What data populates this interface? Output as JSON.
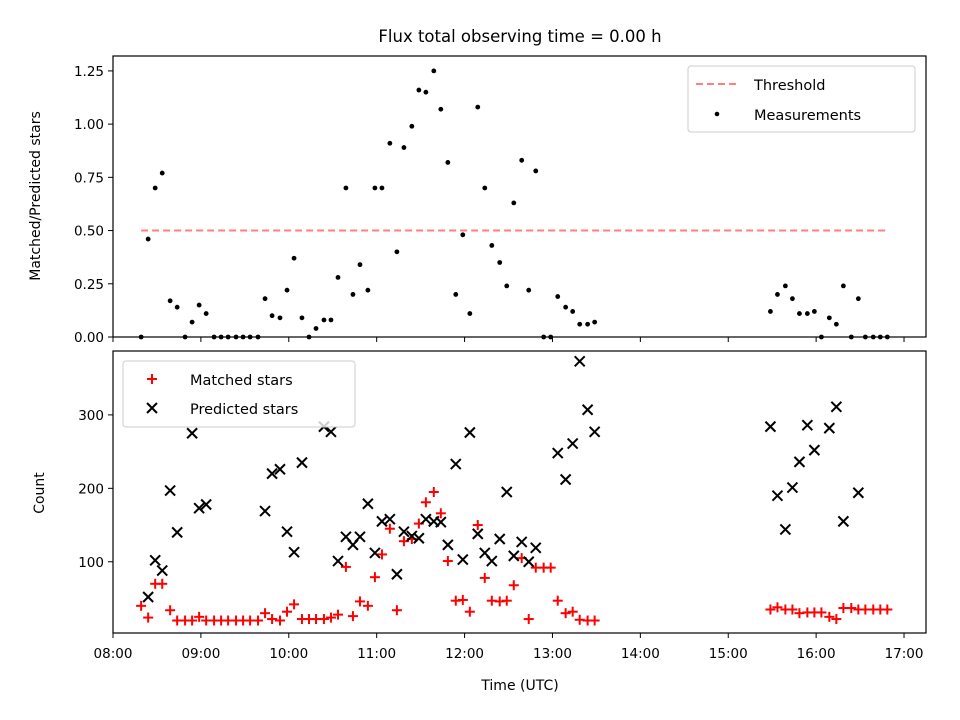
{
  "figure": {
    "title": "Flux total observing time = 0.00 h"
  },
  "chart_data": [
    {
      "type": "scatter",
      "ylabel": "Matched/Predicted stars",
      "ylim": [
        0,
        1.32
      ],
      "xlim": [
        8.0,
        17.25
      ],
      "yticks": [
        0.0,
        0.25,
        0.5,
        0.75,
        1.0,
        1.25
      ],
      "ytick_labels": [
        "0.00",
        "0.25",
        "0.50",
        "0.75",
        "1.00",
        "1.25"
      ],
      "legend_position": "upper right",
      "grid": false,
      "threshold": {
        "name": "Threshold",
        "value": 0.5,
        "x_range": [
          8.32,
          16.83
        ],
        "color": "#ff7f7f"
      },
      "series": [
        {
          "name": "Measurements",
          "marker": "dot",
          "color": "#000000",
          "points": [
            [
              8.32,
              0.0
            ],
            [
              8.4,
              0.46
            ],
            [
              8.48,
              0.7
            ],
            [
              8.56,
              0.77
            ],
            [
              8.65,
              0.17
            ],
            [
              8.73,
              0.14
            ],
            [
              8.82,
              0.0
            ],
            [
              8.9,
              0.07
            ],
            [
              8.98,
              0.15
            ],
            [
              9.06,
              0.11
            ],
            [
              9.15,
              0.0
            ],
            [
              9.23,
              0.0
            ],
            [
              9.31,
              0.0
            ],
            [
              9.4,
              0.0
            ],
            [
              9.48,
              0.0
            ],
            [
              9.56,
              0.0
            ],
            [
              9.65,
              0.0
            ],
            [
              9.73,
              0.18
            ],
            [
              9.81,
              0.1
            ],
            [
              9.9,
              0.09
            ],
            [
              9.98,
              0.22
            ],
            [
              10.06,
              0.37
            ],
            [
              10.15,
              0.09
            ],
            [
              10.23,
              0.0
            ],
            [
              10.31,
              0.04
            ],
            [
              10.4,
              0.08
            ],
            [
              10.48,
              0.08
            ],
            [
              10.56,
              0.28
            ],
            [
              10.65,
              0.7
            ],
            [
              10.73,
              0.2
            ],
            [
              10.81,
              0.34
            ],
            [
              10.9,
              0.22
            ],
            [
              10.98,
              0.7
            ],
            [
              11.06,
              0.7
            ],
            [
              11.15,
              0.91
            ],
            [
              11.23,
              0.4
            ],
            [
              11.31,
              0.89
            ],
            [
              11.4,
              0.99
            ],
            [
              11.48,
              1.16
            ],
            [
              11.56,
              1.15
            ],
            [
              11.65,
              1.25
            ],
            [
              11.73,
              1.07
            ],
            [
              11.81,
              0.82
            ],
            [
              11.9,
              0.2
            ],
            [
              11.98,
              0.48
            ],
            [
              12.06,
              0.11
            ],
            [
              12.15,
              1.08
            ],
            [
              12.23,
              0.7
            ],
            [
              12.31,
              0.43
            ],
            [
              12.4,
              0.35
            ],
            [
              12.48,
              0.24
            ],
            [
              12.56,
              0.63
            ],
            [
              12.65,
              0.83
            ],
            [
              12.73,
              0.22
            ],
            [
              12.81,
              0.78
            ],
            [
              12.9,
              0.0
            ],
            [
              12.98,
              0.0
            ],
            [
              13.06,
              0.19
            ],
            [
              13.15,
              0.14
            ],
            [
              13.23,
              0.12
            ],
            [
              13.31,
              0.06
            ],
            [
              13.4,
              0.06
            ],
            [
              13.48,
              0.07
            ],
            [
              15.48,
              0.12
            ],
            [
              15.56,
              0.2
            ],
            [
              15.65,
              0.24
            ],
            [
              15.73,
              0.18
            ],
            [
              15.81,
              0.11
            ],
            [
              15.9,
              0.11
            ],
            [
              15.98,
              0.12
            ],
            [
              16.06,
              0.0
            ],
            [
              16.15,
              0.09
            ],
            [
              16.23,
              0.06
            ],
            [
              16.31,
              0.24
            ],
            [
              16.4,
              0.0
            ],
            [
              16.48,
              0.18
            ],
            [
              16.56,
              0.0
            ],
            [
              16.65,
              0.0
            ],
            [
              16.73,
              0.0
            ],
            [
              16.81,
              0.0
            ]
          ]
        }
      ]
    },
    {
      "type": "scatter",
      "xlabel": "Time (UTC)",
      "ylabel": "Count",
      "xlim": [
        8.0,
        17.25
      ],
      "ylim": [
        3,
        387
      ],
      "xticks": [
        8,
        9,
        10,
        11,
        12,
        13,
        14,
        15,
        16,
        17
      ],
      "xtick_labels": [
        "08:00",
        "09:00",
        "10:00",
        "11:00",
        "12:00",
        "13:00",
        "14:00",
        "15:00",
        "16:00",
        "17:00"
      ],
      "yticks": [
        100,
        200,
        300
      ],
      "ytick_labels": [
        "100",
        "200",
        "300"
      ],
      "legend_position": "upper left",
      "grid": false,
      "series": [
        {
          "name": "Matched stars",
          "marker": "plus",
          "color": "#ff0000",
          "points": [
            [
              8.32,
              40
            ],
            [
              8.4,
              24
            ],
            [
              8.48,
              70
            ],
            [
              8.56,
              70
            ],
            [
              8.65,
              34
            ],
            [
              8.73,
              20
            ],
            [
              8.82,
              20
            ],
            [
              8.9,
              20
            ],
            [
              8.98,
              25
            ],
            [
              9.06,
              20
            ],
            [
              9.15,
              20
            ],
            [
              9.23,
              20
            ],
            [
              9.31,
              20
            ],
            [
              9.4,
              20
            ],
            [
              9.48,
              20
            ],
            [
              9.56,
              20
            ],
            [
              9.65,
              20
            ],
            [
              9.73,
              30
            ],
            [
              9.81,
              22
            ],
            [
              9.9,
              20
            ],
            [
              9.98,
              32
            ],
            [
              10.06,
              42
            ],
            [
              10.15,
              22
            ],
            [
              10.23,
              22
            ],
            [
              10.31,
              22
            ],
            [
              10.4,
              22
            ],
            [
              10.48,
              24
            ],
            [
              10.56,
              28
            ],
            [
              10.65,
              93
            ],
            [
              10.73,
              26
            ],
            [
              10.81,
              46
            ],
            [
              10.9,
              40
            ],
            [
              10.98,
              79
            ],
            [
              11.06,
              110
            ],
            [
              11.15,
              145
            ],
            [
              11.23,
              34
            ],
            [
              11.31,
              128
            ],
            [
              11.4,
              131
            ],
            [
              11.48,
              152
            ],
            [
              11.56,
              181
            ],
            [
              11.65,
              195
            ],
            [
              11.73,
              166
            ],
            [
              11.81,
              101
            ],
            [
              11.9,
              47
            ],
            [
              11.98,
              48
            ],
            [
              12.06,
              32
            ],
            [
              12.15,
              150
            ],
            [
              12.23,
              78
            ],
            [
              12.31,
              47
            ],
            [
              12.4,
              46
            ],
            [
              12.48,
              47
            ],
            [
              12.56,
              68
            ],
            [
              12.65,
              105
            ],
            [
              12.73,
              22
            ],
            [
              12.81,
              92
            ],
            [
              12.9,
              92
            ],
            [
              12.98,
              92
            ],
            [
              13.06,
              47
            ],
            [
              13.15,
              30
            ],
            [
              13.23,
              32
            ],
            [
              13.31,
              21
            ],
            [
              13.4,
              20
            ],
            [
              13.48,
              20
            ],
            [
              15.48,
              35
            ],
            [
              15.56,
              38
            ],
            [
              15.65,
              35
            ],
            [
              15.73,
              35
            ],
            [
              15.81,
              30
            ],
            [
              15.9,
              31
            ],
            [
              15.98,
              31
            ],
            [
              16.06,
              31
            ],
            [
              16.15,
              25
            ],
            [
              16.23,
              22
            ],
            [
              16.31,
              37
            ],
            [
              16.4,
              37
            ],
            [
              16.48,
              35
            ],
            [
              16.56,
              35
            ],
            [
              16.65,
              35
            ],
            [
              16.73,
              35
            ],
            [
              16.81,
              35
            ]
          ]
        },
        {
          "name": "Predicted stars",
          "marker": "x",
          "color": "#000000",
          "points": [
            [
              8.4,
              52
            ],
            [
              8.48,
              102
            ],
            [
              8.56,
              88
            ],
            [
              8.65,
              197
            ],
            [
              8.73,
              140
            ],
            [
              8.9,
              275
            ],
            [
              8.98,
              173
            ],
            [
              9.06,
              178
            ],
            [
              9.73,
              169
            ],
            [
              9.81,
              220
            ],
            [
              9.9,
              226
            ],
            [
              9.98,
              141
            ],
            [
              10.06,
              113
            ],
            [
              10.15,
              235
            ],
            [
              10.4,
              284
            ],
            [
              10.48,
              277
            ],
            [
              10.56,
              101
            ],
            [
              10.65,
              134
            ],
            [
              10.73,
              123
            ],
            [
              10.81,
              134
            ],
            [
              10.9,
              179
            ],
            [
              10.98,
              112
            ],
            [
              11.06,
              155
            ],
            [
              11.15,
              158
            ],
            [
              11.23,
              83
            ],
            [
              11.31,
              141
            ],
            [
              11.4,
              135
            ],
            [
              11.48,
              132
            ],
            [
              11.56,
              158
            ],
            [
              11.65,
              155
            ],
            [
              11.73,
              154
            ],
            [
              11.81,
              123
            ],
            [
              11.9,
              233
            ],
            [
              11.98,
              103
            ],
            [
              12.06,
              276
            ],
            [
              12.15,
              138
            ],
            [
              12.23,
              112
            ],
            [
              12.31,
              101
            ],
            [
              12.4,
              131
            ],
            [
              12.48,
              195
            ],
            [
              12.56,
              108
            ],
            [
              12.65,
              127
            ],
            [
              12.73,
              100
            ],
            [
              12.81,
              119
            ],
            [
              13.06,
              248
            ],
            [
              13.15,
              212
            ],
            [
              13.23,
              261
            ],
            [
              13.31,
              373
            ],
            [
              13.4,
              307
            ],
            [
              13.48,
              277
            ],
            [
              15.48,
              284
            ],
            [
              15.56,
              190
            ],
            [
              15.65,
              144
            ],
            [
              15.73,
              201
            ],
            [
              15.81,
              236
            ],
            [
              15.9,
              286
            ],
            [
              15.98,
              252
            ],
            [
              16.15,
              282
            ],
            [
              16.23,
              311
            ],
            [
              16.31,
              155
            ],
            [
              16.48,
              194
            ]
          ]
        }
      ]
    }
  ]
}
